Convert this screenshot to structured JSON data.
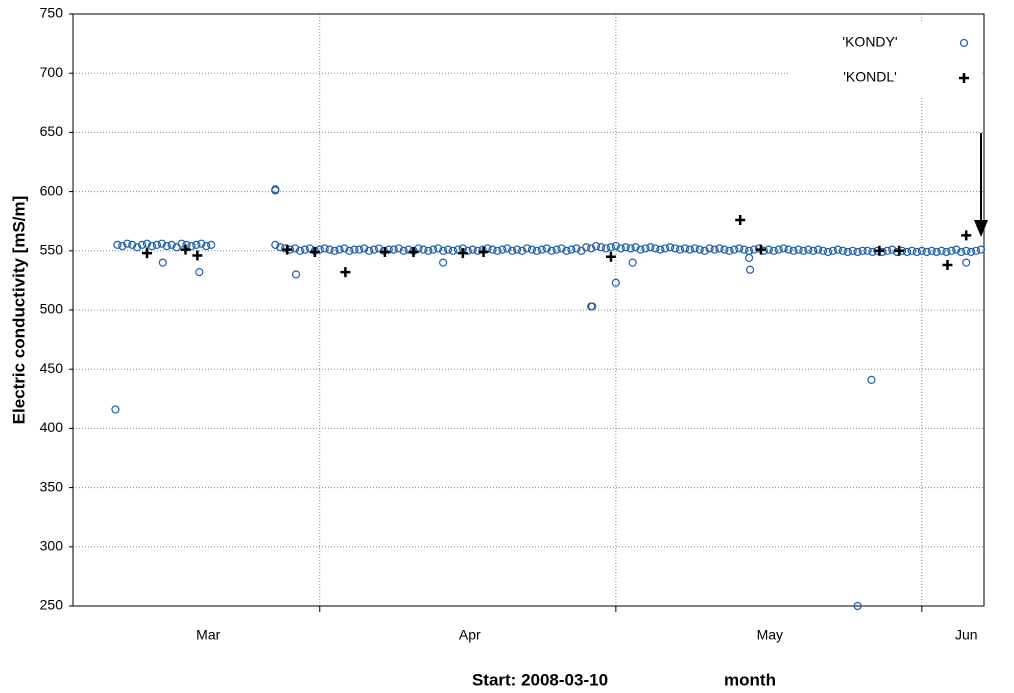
{
  "chart_data": {
    "type": "scatter",
    "y_label": "Electric conductivity [mS/m]",
    "x_label_start": "Start: 2008-03-10",
    "x_label": "month",
    "xlim": [
      -3,
      89.3
    ],
    "ylim": [
      250,
      750
    ],
    "yticks": [
      250,
      300,
      350,
      400,
      450,
      500,
      550,
      600,
      650,
      700,
      750
    ],
    "xticks": [
      {
        "value": 10.7,
        "label": "Mar"
      },
      {
        "value": 37.2,
        "label": "Apr"
      },
      {
        "value": 67.6,
        "label": "May"
      },
      {
        "value": 87.5,
        "label": "Jun"
      }
    ],
    "xgrid": [
      22,
      52,
      83
    ],
    "grid": true,
    "legend": "upper right",
    "series": [
      {
        "name": "'KONDY'",
        "color": "#1f5fa8",
        "marker": "circle",
        "x": [
          1.5,
          2,
          2.5,
          3,
          3.5,
          4,
          4.5,
          5,
          5.5,
          6,
          6.5,
          7,
          7.5,
          8,
          8.5,
          9,
          9.5,
          10,
          10.5,
          11,
          17.5,
          18,
          18.5,
          19,
          19.5,
          20,
          20.5,
          21,
          21.5,
          22,
          22.5,
          23,
          23.5,
          24,
          24.5,
          25,
          25.5,
          26,
          26.5,
          27,
          27.5,
          28,
          28.5,
          29,
          29.5,
          30,
          30.5,
          31,
          31.5,
          32,
          32.5,
          33,
          33.5,
          34,
          34.5,
          35,
          35.5,
          36,
          36.5,
          37,
          37.5,
          38,
          38.5,
          39,
          39.5,
          40,
          40.5,
          41,
          41.5,
          42,
          42.5,
          43,
          43.5,
          44,
          44.5,
          45,
          45.5,
          46,
          46.5,
          47,
          47.5,
          48,
          48.5,
          49,
          49.5,
          50,
          50.5,
          51,
          51.5,
          52,
          52.5,
          53,
          53.5,
          54,
          54.5,
          55,
          55.5,
          56,
          56.5,
          57,
          57.5,
          58,
          58.5,
          59,
          59.5,
          60,
          60.5,
          61,
          61.5,
          62,
          62.5,
          63,
          63.5,
          64,
          64.5,
          65,
          65.5,
          66,
          66.5,
          67,
          67.5,
          68,
          68.5,
          69,
          69.5,
          70,
          70.5,
          71,
          71.5,
          72,
          72.5,
          73,
          73.5,
          74,
          74.5,
          75,
          75.5,
          76,
          76.5,
          77,
          77.5,
          78,
          78.5,
          79,
          79.5,
          80,
          80.5,
          81,
          81.5,
          82,
          82.5,
          83,
          83.5,
          84,
          84.5,
          85,
          85.5,
          86,
          86.5,
          87,
          87.5,
          88,
          88.5,
          89,
          1.3,
          6.1,
          9.8,
          17.5,
          17.5,
          19.6,
          34.5,
          49.5,
          49.6,
          52,
          53.7,
          65.6,
          65.5,
          76.5,
          77.9,
          87.5
        ],
        "values": [
          555,
          554,
          556,
          555,
          553,
          555,
          556,
          554,
          555,
          556,
          554,
          555,
          553,
          556,
          555,
          554,
          555,
          556,
          554,
          555,
          555,
          553,
          552,
          551,
          552,
          550,
          551,
          552,
          550,
          551,
          552,
          551,
          550,
          551,
          552,
          550,
          551,
          551,
          552,
          550,
          551,
          552,
          550,
          551,
          551,
          552,
          550,
          551,
          550,
          552,
          551,
          550,
          551,
          552,
          550,
          551,
          550,
          551,
          552,
          550,
          551,
          550,
          551,
          552,
          551,
          550,
          551,
          552,
          550,
          551,
          550,
          552,
          551,
          550,
          551,
          552,
          550,
          551,
          552,
          550,
          551,
          552,
          550,
          553,
          552,
          554,
          553,
          552,
          553,
          554,
          552,
          553,
          552,
          553,
          551,
          552,
          553,
          552,
          551,
          552,
          553,
          552,
          551,
          552,
          551,
          552,
          551,
          550,
          552,
          551,
          552,
          551,
          550,
          551,
          552,
          551,
          550,
          551,
          552,
          550,
          551,
          550,
          551,
          552,
          551,
          550,
          551,
          550,
          551,
          550,
          551,
          550,
          549,
          550,
          551,
          550,
          549,
          550,
          549,
          550,
          550,
          549,
          550,
          549,
          550,
          551,
          549,
          550,
          549,
          550,
          549,
          550,
          549,
          550,
          549,
          550,
          549,
          550,
          551,
          549,
          550,
          549,
          550,
          551,
          416,
          540,
          532,
          602,
          601,
          530,
          540,
          503,
          503,
          523,
          540,
          534,
          544,
          250,
          441,
          540
        ]
      },
      {
        "name": "'KONDL'",
        "color": "#000000",
        "marker": "plus",
        "x": [
          4.5,
          8.4,
          9.6,
          18.7,
          21.5,
          24.6,
          28.6,
          31.5,
          36.5,
          38.6,
          51.5,
          64.6,
          66.7,
          78.7,
          80.7,
          85.6,
          87.5
        ],
        "values": [
          548,
          551,
          546,
          551,
          549,
          532,
          549,
          549,
          548,
          549,
          545,
          576,
          551,
          550,
          550,
          538,
          563
        ]
      }
    ]
  }
}
